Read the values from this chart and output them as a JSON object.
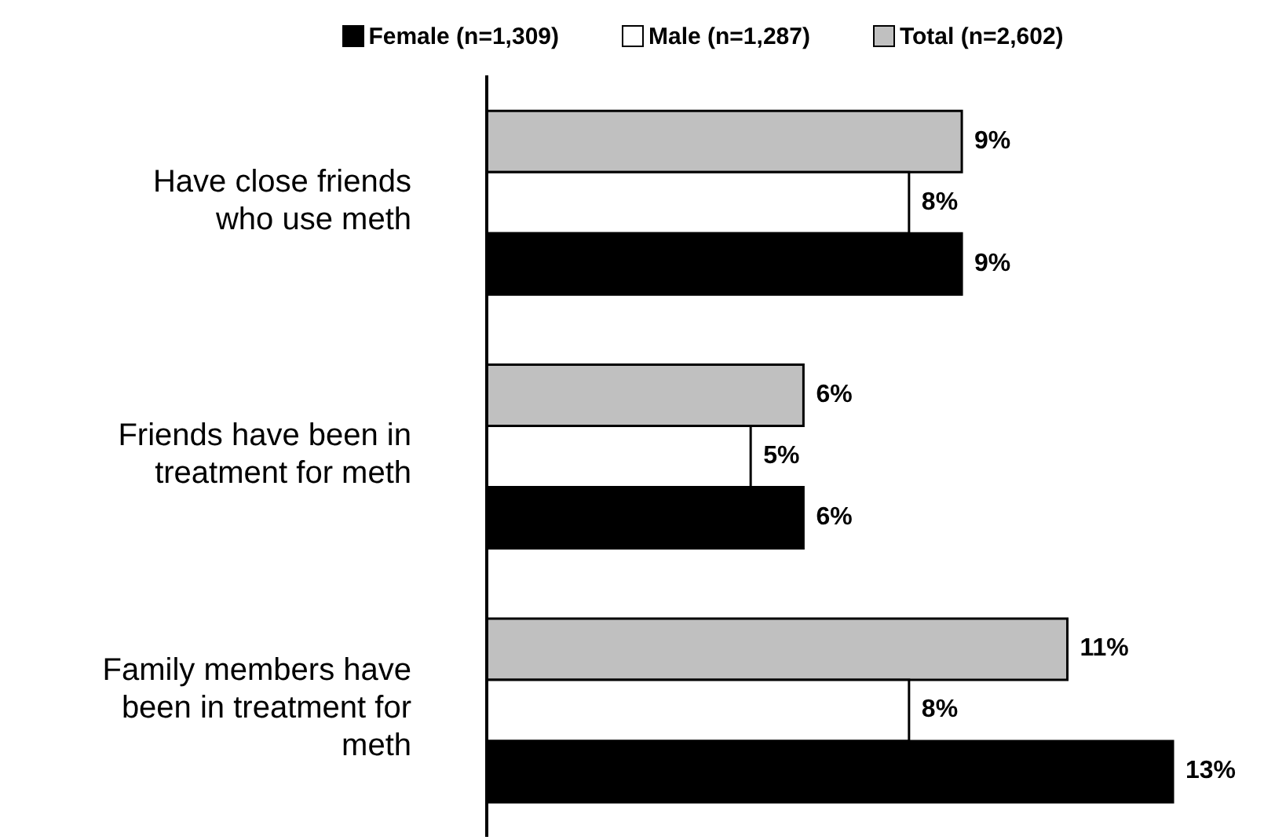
{
  "chart_data": {
    "type": "bar",
    "orientation": "horizontal",
    "legend": "top",
    "data_labels": true,
    "categories": [
      "Have close friends who use meth",
      "Friends have been in treatment for meth",
      "Family members have been in treatment for meth"
    ],
    "series": [
      {
        "name": "Total (n=2,602)",
        "color": "#c0c0c0",
        "values": [
          9,
          6,
          11
        ],
        "value_labels": [
          "9%",
          "6%",
          "11%"
        ]
      },
      {
        "name": "Male (n=1,287)",
        "color": "#ffffff",
        "values": [
          8,
          5,
          8
        ],
        "value_labels": [
          "8%",
          "5%",
          "8%"
        ]
      },
      {
        "name": "Female (n=1,309)",
        "color": "#000000",
        "values": [
          9,
          6,
          13
        ],
        "value_labels": [
          "9%",
          "6%",
          "13%"
        ]
      }
    ]
  }
}
